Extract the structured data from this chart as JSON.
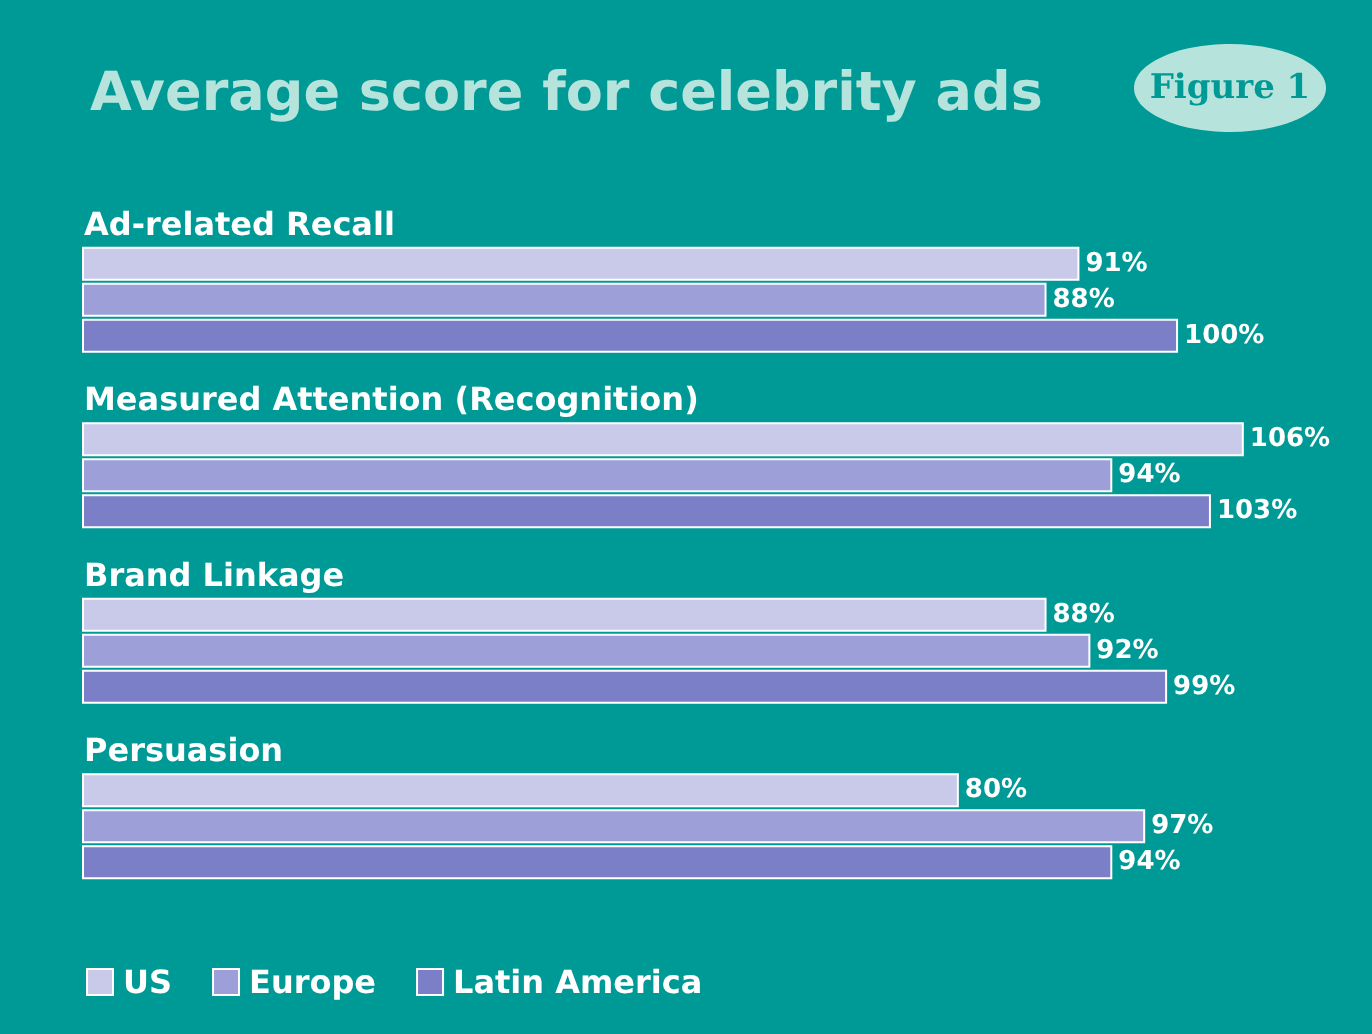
{
  "chart_data": {
    "type": "bar",
    "orientation": "horizontal",
    "title": "Average score for celebrity ads",
    "annotations": [
      "Figure 1"
    ],
    "categories": [
      "Ad-related Recall",
      "Measured Attention (Recognition)",
      "Brand Linkage",
      "Persuasion"
    ],
    "series": [
      {
        "name": "US",
        "color": "#c9c9ea",
        "values": [
          91,
          106,
          88,
          80
        ],
        "value_labels": [
          "91%",
          "106%",
          "88%",
          "80%"
        ]
      },
      {
        "name": "Europe",
        "color": "#9c9fd8",
        "values": [
          88,
          94,
          92,
          97
        ],
        "value_labels": [
          "88%",
          "94%",
          "92%",
          "97%"
        ]
      },
      {
        "name": "Latin America",
        "color": "#7a7fc8",
        "values": [
          100,
          103,
          99,
          94
        ],
        "value_labels": [
          "100%",
          "103%",
          "99%",
          "94%"
        ]
      }
    ],
    "legend": "bottom left"
  }
}
